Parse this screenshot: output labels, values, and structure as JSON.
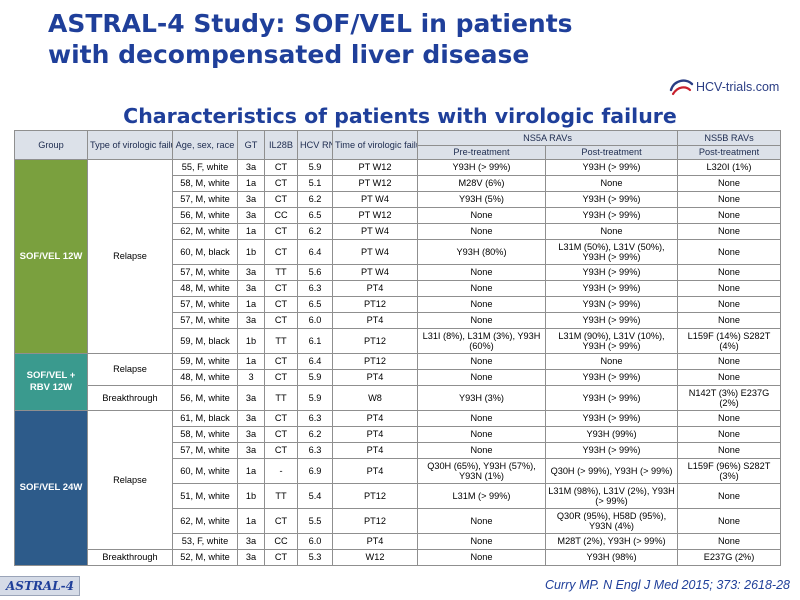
{
  "title": {
    "line1": "ASTRAL-4 Study: SOF/VEL in patients",
    "line2": "with decompensated liver disease"
  },
  "logo": {
    "text": "HCV-trials.com"
  },
  "subtitle": "Characteristics of patients with virologic failure",
  "table": {
    "headers": {
      "group": "Group",
      "type_of_failure": "Type of virologic failure",
      "age_sex_race": "Age, sex, race",
      "gt": "GT",
      "il28b": "IL28B",
      "hcv_rna": "HCV RNA",
      "time_of_failure": "Time of virologic failure",
      "ns5a": "NS5A RAVs",
      "ns5b": "NS5B RAVs",
      "pre_treatment": "Pre-treatment",
      "post_treatment": "Post-treatment",
      "ns5b_post": "Post-treatment"
    },
    "groups": {
      "g1": "SOF/VEL 12W",
      "g2": "SOF/VEL + RBV 12W",
      "g3": "SOF/VEL 24W"
    },
    "failure_types": {
      "relapse1": "Relapse",
      "relapse2": "Relapse",
      "breakthrough2": "Breakthrough",
      "relapse3": "Relapse",
      "breakthrough3": "Breakthrough"
    },
    "rows": [
      {
        "age": "55, F, white",
        "gt": "3a",
        "il28b": "CT",
        "rna": "5.9",
        "time": "PT W12",
        "pre": "Y93H (> 99%)",
        "post": "Y93H (> 99%)",
        "ns5b": "L320I (1%)"
      },
      {
        "age": "58, M, white",
        "gt": "1a",
        "il28b": "CT",
        "rna": "5.1",
        "time": "PT W12",
        "pre": "M28V  (6%)",
        "post": "None",
        "ns5b": "None"
      },
      {
        "age": "57, M, white",
        "gt": "3a",
        "il28b": "CT",
        "rna": "6.2",
        "time": "PT W4",
        "pre": "Y93H (5%)",
        "post": "Y93H (> 99%)",
        "ns5b": "None"
      },
      {
        "age": "56, M, white",
        "gt": "3a",
        "il28b": "CC",
        "rna": "6.5",
        "time": "PT W12",
        "pre": "None",
        "post": "Y93H (> 99%)",
        "ns5b": "None"
      },
      {
        "age": "62, M, white",
        "gt": "1a",
        "il28b": "CT",
        "rna": "6.2",
        "time": "PT W4",
        "pre": "None",
        "post": "None",
        "ns5b": "None"
      },
      {
        "age": "60, M, black",
        "gt": "1b",
        "il28b": "CT",
        "rna": "6.4",
        "time": "PT W4",
        "pre": "Y93H (80%)",
        "post": "L31M (50%), L31V (50%), Y93H (> 99%)",
        "ns5b": "None"
      },
      {
        "age": "57, M, white",
        "gt": "3a",
        "il28b": "TT",
        "rna": "5.6",
        "time": "PT W4",
        "pre": "None",
        "post": "Y93H (> 99%)",
        "ns5b": "None"
      },
      {
        "age": "48, M, white",
        "gt": "3a",
        "il28b": "CT",
        "rna": "6.3",
        "time": "PT4",
        "pre": "None",
        "post": "Y93H (> 99%)",
        "ns5b": "None"
      },
      {
        "age": "57, M, white",
        "gt": "1a",
        "il28b": "CT",
        "rna": "6.5",
        "time": "PT12",
        "pre": "None",
        "post": "Y93N (> 99%)",
        "ns5b": "None"
      },
      {
        "age": "57, M, white",
        "gt": "3a",
        "il28b": "CT",
        "rna": "6.0",
        "time": "PT4",
        "pre": "None",
        "post": "Y93H (> 99%)",
        "ns5b": "None"
      },
      {
        "age": "59, M, black",
        "gt": "1b",
        "il28b": "TT",
        "rna": "6.1",
        "time": "PT12",
        "pre": "L31I (8%), L31M (3%), Y93H (60%)",
        "post": "L31M (90%), L31V (10%), Y93H (> 99%)",
        "ns5b": "L159F (14%) S282T (4%)"
      },
      {
        "age": "59, M, white",
        "gt": "1a",
        "il28b": "CT",
        "rna": "6.4",
        "time": "PT12",
        "pre": "None",
        "post": "None",
        "ns5b": "None"
      },
      {
        "age": "48, M, white",
        "gt": "3",
        "il28b": "CT",
        "rna": "5.9",
        "time": "PT4",
        "pre": "None",
        "post": "Y93H (> 99%)",
        "ns5b": "None"
      },
      {
        "age": "56, M, white",
        "gt": "3a",
        "il28b": "TT",
        "rna": "5.9",
        "time": "W8",
        "pre": "Y93H (3%)",
        "post": "Y93H (> 99%)",
        "ns5b": "N142T (3%) E237G (2%)"
      },
      {
        "age": "61, M, black",
        "gt": "3a",
        "il28b": "CT",
        "rna": "6.3",
        "time": "PT4",
        "pre": "None",
        "post": "Y93H (> 99%)",
        "ns5b": "None"
      },
      {
        "age": "58, M, white",
        "gt": "3a",
        "il28b": "CT",
        "rna": "6.2",
        "time": "PT4",
        "pre": "None",
        "post": "Y93H (99%)",
        "ns5b": "None"
      },
      {
        "age": "57, M, white",
        "gt": "3a",
        "il28b": "CT",
        "rna": "6.3",
        "time": "PT4",
        "pre": "None",
        "post": "Y93H (> 99%)",
        "ns5b": "None"
      },
      {
        "age": "60, M, white",
        "gt": "1a",
        "il28b": "-",
        "rna": "6.9",
        "time": "PT4",
        "pre": "Q30H (65%), Y93H (57%), Y93N (1%)",
        "post": "Q30H (> 99%), Y93H (> 99%)",
        "ns5b": "L159F (96%) S282T (3%)"
      },
      {
        "age": "51, M, white",
        "gt": "1b",
        "il28b": "TT",
        "rna": "5.4",
        "time": "PT12",
        "pre": "L31M (> 99%)",
        "post": "L31M (98%), L31V (2%), Y93H (> 99%)",
        "ns5b": "None"
      },
      {
        "age": "62, M, white",
        "gt": "1a",
        "il28b": "CT",
        "rna": "5.5",
        "time": "PT12",
        "pre": "None",
        "post": "Q30R (95%), H58D (95%), Y93N (4%)",
        "ns5b": "None"
      },
      {
        "age": "53, F, white",
        "gt": "3a",
        "il28b": "CC",
        "rna": "6.0",
        "time": "PT4",
        "pre": "None",
        "post": "M28T (2%), Y93H (> 99%)",
        "ns5b": "None"
      },
      {
        "age": "52, M, white",
        "gt": "3a",
        "il28b": "CT",
        "rna": "5.3",
        "time": "W12",
        "pre": "None",
        "post": "Y93H (98%)",
        "ns5b": "E237G (2%)"
      }
    ]
  },
  "footer": {
    "study_label": "ASTRAL-4",
    "citation": "Curry MP. N Engl J Med 2015; 373: 2618-28"
  },
  "colors": {
    "title": "#1f3f9a",
    "group_12w": "#7aa03e",
    "group_rbv": "#3a9a8e",
    "group_24w": "#2d5b8a",
    "header_bg": "#dce1e9"
  }
}
